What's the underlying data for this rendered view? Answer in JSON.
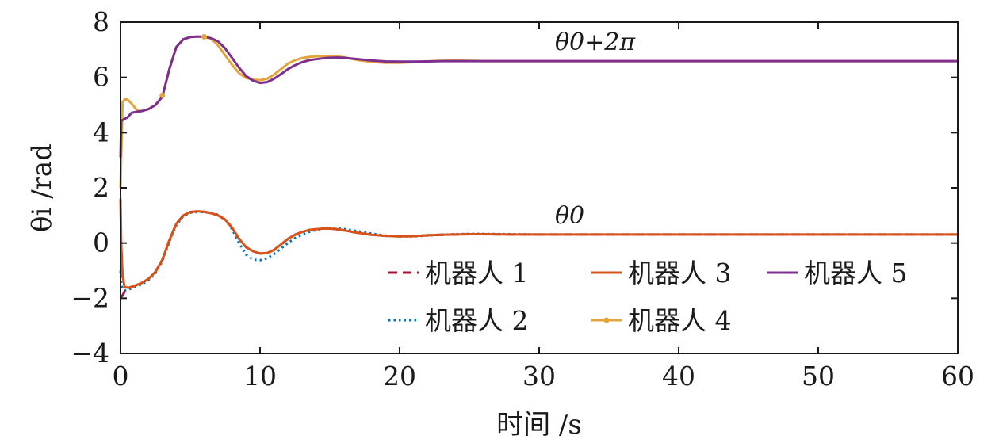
{
  "chart_data": {
    "type": "line",
    "xlabel": "时间 /s",
    "ylabel": "θi /rad",
    "xlim": [
      0,
      60
    ],
    "ylim": [
      -4,
      8
    ],
    "xticks": [
      0,
      10,
      20,
      30,
      40,
      50,
      60
    ],
    "yticks": [
      -4,
      -2,
      0,
      2,
      4,
      6,
      8
    ],
    "grid": false,
    "legend_position": "lower-right",
    "annotations": [
      {
        "text": "θ0+2π",
        "x": 27.5,
        "y": 7.1
      },
      {
        "text": "θ0",
        "x": 32,
        "y": 0.75
      }
    ],
    "series": [
      {
        "name": "机器人 1",
        "color": "#a2142f",
        "dash": "dashed",
        "x": [
          0,
          0.05,
          0.15,
          0.3,
          0.6,
          1,
          1.5,
          2,
          2.5,
          3,
          3.5,
          4,
          4.5,
          5,
          5.5,
          6,
          6.5,
          7,
          7.5,
          8,
          8.5,
          9,
          9.5,
          10,
          10.5,
          11,
          11.5,
          12,
          12.5,
          13,
          13.5,
          14,
          14.5,
          15,
          15.5,
          16,
          17,
          18,
          19,
          20,
          21,
          22,
          23,
          24,
          25,
          26,
          28,
          30,
          35,
          40,
          45,
          50,
          55,
          60
        ],
        "y": [
          -2.0,
          -1.95,
          -1.9,
          -1.75,
          -1.62,
          -1.55,
          -1.45,
          -1.3,
          -1.05,
          -0.6,
          0.1,
          0.7,
          1.0,
          1.12,
          1.15,
          1.13,
          1.08,
          1.0,
          0.85,
          0.55,
          0.15,
          -0.15,
          -0.3,
          -0.38,
          -0.36,
          -0.25,
          -0.05,
          0.15,
          0.3,
          0.4,
          0.47,
          0.5,
          0.52,
          0.52,
          0.5,
          0.46,
          0.37,
          0.3,
          0.26,
          0.24,
          0.25,
          0.28,
          0.3,
          0.31,
          0.32,
          0.32,
          0.31,
          0.31,
          0.31,
          0.31,
          0.31,
          0.31,
          0.31,
          0.31
        ]
      },
      {
        "name": "机器人 2",
        "color": "#0072bd",
        "dash": "dotted",
        "x": [
          0,
          0.05,
          0.15,
          0.3,
          0.6,
          1,
          1.5,
          2,
          2.5,
          3,
          3.5,
          4,
          4.5,
          5,
          5.5,
          6,
          6.5,
          7,
          7.5,
          8,
          8.5,
          9,
          9.5,
          10,
          10.5,
          11,
          11.5,
          12,
          12.5,
          13,
          13.5,
          14,
          14.5,
          15,
          15.5,
          16,
          17,
          18,
          19,
          20,
          21,
          22,
          23,
          24,
          25,
          26,
          28,
          30,
          35,
          40,
          45,
          50,
          55,
          60
        ],
        "y": [
          -1.0,
          -1.5,
          -1.65,
          -1.72,
          -1.68,
          -1.6,
          -1.5,
          -1.35,
          -1.1,
          -0.65,
          0.05,
          0.65,
          0.98,
          1.1,
          1.12,
          1.12,
          1.1,
          1.02,
          0.85,
          0.5,
          0.0,
          -0.42,
          -0.6,
          -0.62,
          -0.55,
          -0.4,
          -0.2,
          0.0,
          0.18,
          0.3,
          0.4,
          0.47,
          0.52,
          0.54,
          0.54,
          0.51,
          0.43,
          0.34,
          0.27,
          0.24,
          0.24,
          0.27,
          0.3,
          0.32,
          0.33,
          0.33,
          0.32,
          0.31,
          0.31,
          0.31,
          0.31,
          0.31,
          0.31,
          0.31
        ]
      },
      {
        "name": "机器人 3",
        "color": "#d95319",
        "dash": "solid",
        "x": [
          0,
          0.05,
          0.15,
          0.3,
          0.6,
          1,
          1.5,
          2,
          2.5,
          3,
          3.5,
          4,
          4.5,
          5,
          5.5,
          6,
          6.5,
          7,
          7.5,
          8,
          8.5,
          9,
          9.5,
          10,
          10.5,
          11,
          11.5,
          12,
          12.5,
          13,
          13.5,
          14,
          14.5,
          15,
          15.5,
          16,
          17,
          18,
          19,
          20,
          21,
          22,
          23,
          24,
          25,
          26,
          28,
          30,
          35,
          40,
          45,
          50,
          55,
          60
        ],
        "y": [
          1.6,
          0.0,
          -1.2,
          -1.6,
          -1.62,
          -1.55,
          -1.45,
          -1.3,
          -1.05,
          -0.6,
          0.1,
          0.7,
          1.0,
          1.12,
          1.15,
          1.13,
          1.08,
          1.0,
          0.85,
          0.55,
          0.15,
          -0.15,
          -0.3,
          -0.38,
          -0.36,
          -0.25,
          -0.05,
          0.15,
          0.3,
          0.4,
          0.47,
          0.5,
          0.52,
          0.52,
          0.5,
          0.46,
          0.37,
          0.3,
          0.26,
          0.24,
          0.25,
          0.28,
          0.3,
          0.31,
          0.32,
          0.32,
          0.31,
          0.31,
          0.31,
          0.31,
          0.31,
          0.31,
          0.31,
          0.31
        ]
      },
      {
        "name": "机器人 4",
        "color": "#e3a53a",
        "dash": "solid-marker",
        "x": [
          0,
          0.05,
          0.15,
          0.3,
          0.5,
          0.8,
          1.2,
          1.5,
          2,
          2.5,
          3,
          3.5,
          4,
          4.5,
          5,
          5.5,
          6,
          6.5,
          7,
          7.5,
          8,
          8.5,
          9,
          9.5,
          10,
          10.5,
          11,
          11.5,
          12,
          12.5,
          13,
          13.5,
          14,
          14.5,
          15,
          15.5,
          16,
          17,
          18,
          19,
          20,
          21,
          22,
          23,
          24,
          25,
          26,
          28,
          30,
          35,
          40,
          45,
          50,
          55,
          60
        ],
        "y": [
          2.0,
          3.1,
          5.1,
          5.2,
          5.2,
          5.05,
          4.8,
          4.78,
          4.85,
          5.0,
          5.3,
          6.3,
          7.1,
          7.38,
          7.46,
          7.48,
          7.47,
          7.4,
          7.15,
          6.8,
          6.45,
          6.15,
          5.98,
          5.92,
          5.9,
          5.95,
          6.1,
          6.3,
          6.5,
          6.62,
          6.7,
          6.74,
          6.76,
          6.78,
          6.78,
          6.76,
          6.73,
          6.63,
          6.56,
          6.53,
          6.53,
          6.55,
          6.58,
          6.6,
          6.61,
          6.6,
          6.59,
          6.59,
          6.59,
          6.59,
          6.59,
          6.59,
          6.59,
          6.59,
          6.59
        ]
      },
      {
        "name": "机器人 5",
        "color": "#7e2f8e",
        "dash": "solid",
        "x": [
          0,
          0.05,
          0.15,
          0.3,
          0.5,
          0.8,
          1.2,
          1.5,
          2,
          2.5,
          3,
          3.5,
          4,
          4.5,
          5,
          5.5,
          6,
          6.5,
          7,
          7.5,
          8,
          8.5,
          9,
          9.5,
          10,
          10.5,
          11,
          11.5,
          12,
          12.5,
          13,
          13.5,
          14,
          14.5,
          15,
          15.5,
          16,
          17,
          18,
          19,
          20,
          21,
          22,
          23,
          24,
          25,
          26,
          28,
          30,
          35,
          40,
          45,
          50,
          55,
          60
        ],
        "y": [
          3.1,
          4.45,
          4.45,
          4.5,
          4.55,
          4.72,
          4.76,
          4.78,
          4.85,
          5.0,
          5.3,
          6.3,
          7.1,
          7.38,
          7.46,
          7.48,
          7.47,
          7.42,
          7.3,
          7.05,
          6.7,
          6.35,
          6.05,
          5.88,
          5.8,
          5.83,
          5.95,
          6.12,
          6.3,
          6.44,
          6.55,
          6.62,
          6.66,
          6.69,
          6.71,
          6.72,
          6.71,
          6.66,
          6.61,
          6.58,
          6.57,
          6.57,
          6.58,
          6.59,
          6.59,
          6.59,
          6.59,
          6.59,
          6.59,
          6.59,
          6.59,
          6.59,
          6.59,
          6.59,
          6.59
        ]
      }
    ],
    "marker_points": [
      {
        "series": 3,
        "x": 3,
        "y": 5.35
      },
      {
        "series": 3,
        "x": 6,
        "y": 7.47
      }
    ]
  }
}
